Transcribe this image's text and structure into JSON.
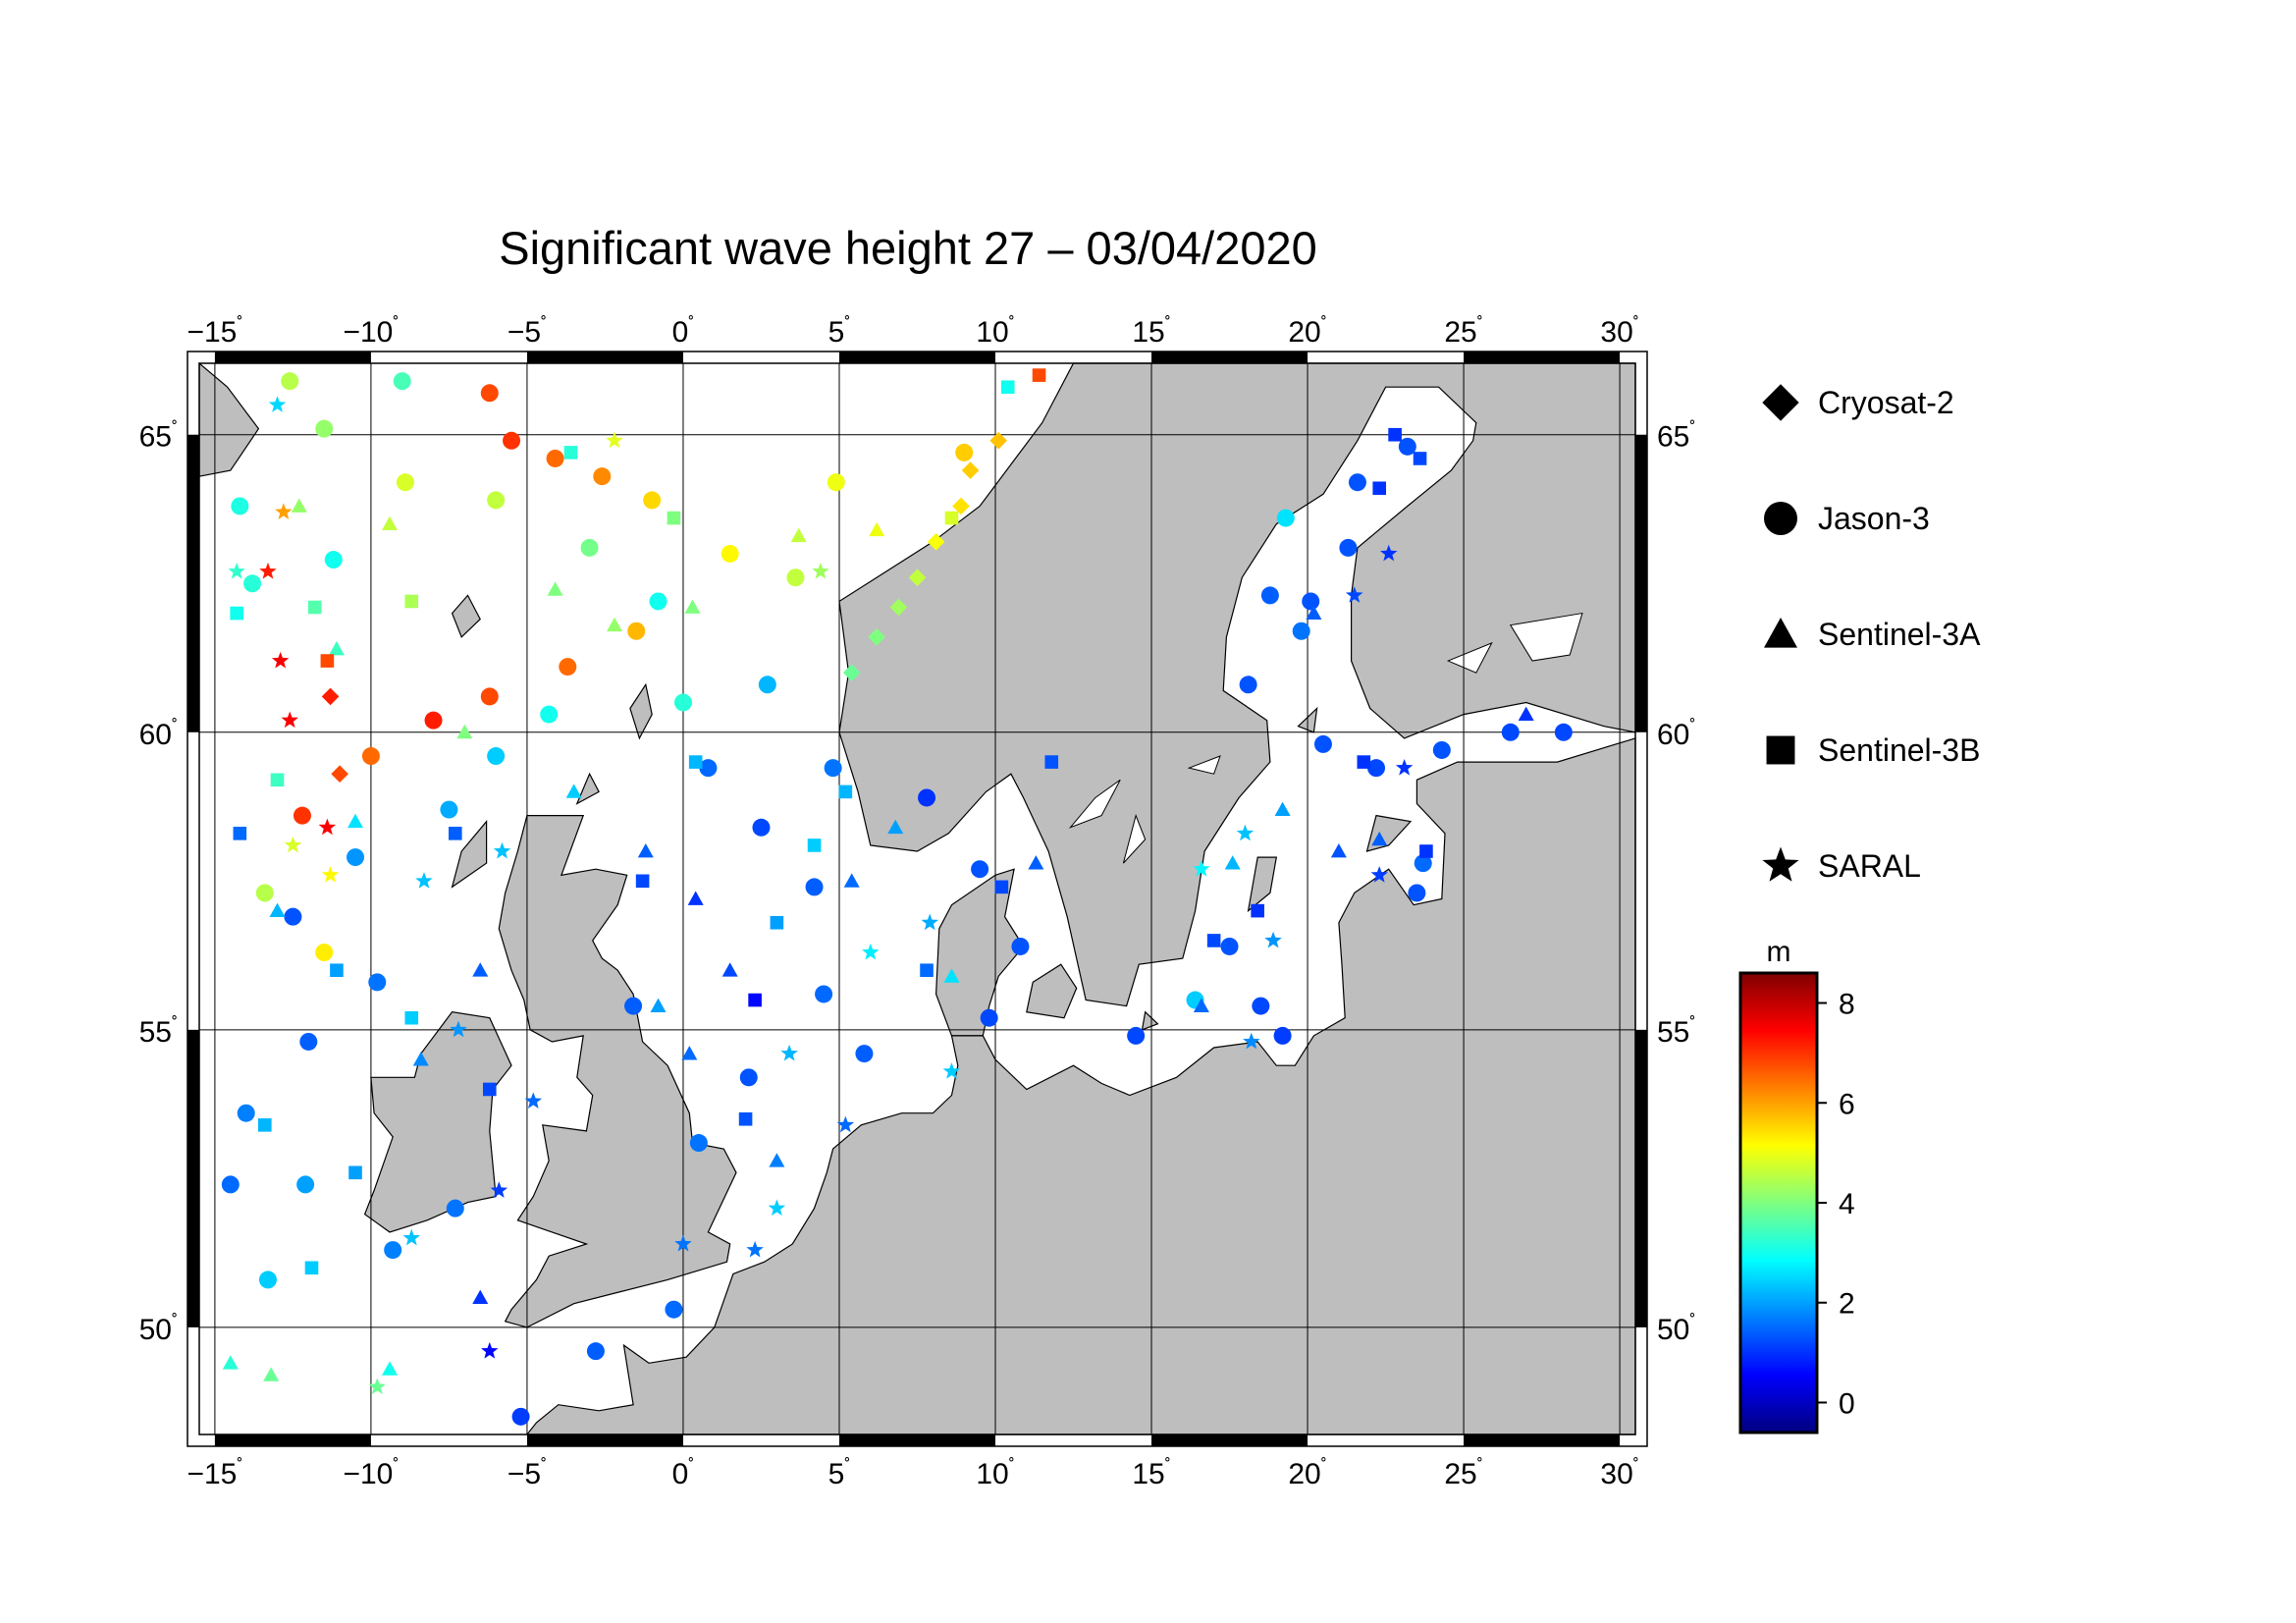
{
  "title": "Significant wave height 27 – 03/04/2020",
  "map": {
    "lon_range": [
      -15.5,
      30.5
    ],
    "lat_range": [
      48.2,
      66.2
    ],
    "lon_ticks": [
      -15,
      -10,
      -5,
      0,
      5,
      10,
      15,
      20,
      25,
      30
    ],
    "lon_tick_labels": [
      "−15",
      "−10",
      "−5",
      "0",
      "5",
      "10",
      "15",
      "20",
      "25",
      "30"
    ],
    "lat_ticks": [
      50,
      55,
      60,
      65
    ],
    "lat_tick_labels": [
      "50",
      "55",
      "60",
      "65"
    ],
    "degree_symbol": "˚",
    "land_color": "#bebebe",
    "sea_color": "#ffffff"
  },
  "legend": {
    "items": [
      {
        "symbol": "diamond",
        "label": "Cryosat-2"
      },
      {
        "symbol": "circle",
        "label": "Jason-3"
      },
      {
        "symbol": "triangle",
        "label": "Sentinel-3A"
      },
      {
        "symbol": "square",
        "label": "Sentinel-3B"
      },
      {
        "symbol": "star",
        "label": "SARAL"
      }
    ]
  },
  "colorbar": {
    "unit": "m",
    "min": -0.6,
    "max": 8.6,
    "ticks": [
      0,
      2,
      4,
      6,
      8
    ],
    "tick_labels": [
      "0",
      "2",
      "4",
      "6",
      "8"
    ],
    "colors": [
      "#00007f",
      "#0000ff",
      "#007fff",
      "#00ffff",
      "#7fff7f",
      "#ffff00",
      "#ff7f00",
      "#ff0000",
      "#7f0000"
    ]
  },
  "chart_data": {
    "type": "scatter",
    "title": "Significant wave height 27 – 03/04/2020",
    "x_axis": "longitude",
    "y_axis": "latitude",
    "value": "significant wave height (m)",
    "series": [
      {
        "name": "Jason-3",
        "symbol": "circle",
        "points": [
          [
            -12.6,
            65.9,
            4.5
          ],
          [
            -9,
            65.9,
            3.5
          ],
          [
            -6.2,
            65.7,
            6.8
          ],
          [
            -5.5,
            64.9,
            7.0
          ],
          [
            -4.1,
            64.6,
            6.5
          ],
          [
            -2.6,
            64.3,
            6.2
          ],
          [
            -1,
            63.9,
            5.5
          ],
          [
            1.5,
            63.0,
            5.2
          ],
          [
            3.6,
            62.6,
            4.6
          ],
          [
            -1.5,
            61.7,
            5.8
          ],
          [
            -3.7,
            61.1,
            6.5
          ],
          [
            -6.2,
            60.6,
            6.8
          ],
          [
            -8,
            60.2,
            7.2
          ],
          [
            -10,
            59.6,
            6.5
          ],
          [
            -12.2,
            58.6,
            7.0
          ],
          [
            -13.4,
            57.3,
            4.5
          ],
          [
            -11.5,
            56.3,
            5.3
          ],
          [
            -13.8,
            62.5,
            3.2
          ],
          [
            -14.2,
            63.8,
            3.1
          ],
          [
            -11.2,
            62.9,
            3.0
          ],
          [
            -9.8,
            55.8,
            1.6
          ],
          [
            -12,
            54.8,
            1.4
          ],
          [
            -14,
            53.6,
            1.7
          ],
          [
            -12.5,
            56.9,
            1.3
          ],
          [
            -10.5,
            57.9,
            1.9
          ],
          [
            -7.5,
            58.7,
            2.1
          ],
          [
            -6,
            59.6,
            2.4
          ],
          [
            -4.3,
            60.3,
            3.0
          ],
          [
            0,
            60.5,
            3.2
          ],
          [
            0.8,
            59.4,
            1.5
          ],
          [
            2.5,
            58.4,
            1.2
          ],
          [
            4.2,
            57.4,
            1.4
          ],
          [
            4.5,
            55.6,
            1.5
          ],
          [
            2.1,
            54.2,
            1.3
          ],
          [
            0.5,
            53.1,
            1.6
          ],
          [
            5.8,
            54.6,
            1.4
          ],
          [
            4.8,
            59.4,
            1.6
          ],
          [
            2.7,
            60.8,
            2.2
          ],
          [
            -0.8,
            62.2,
            3.0
          ],
          [
            -3,
            63.1,
            3.9
          ],
          [
            -6,
            63.9,
            4.6
          ],
          [
            -8.9,
            64.2,
            4.8
          ],
          [
            -11.5,
            65.1,
            4.2
          ],
          [
            4.9,
            64.2,
            5.0
          ],
          [
            9,
            64.7,
            5.6
          ],
          [
            7.8,
            58.9,
            1.0
          ],
          [
            9.5,
            57.7,
            1.3
          ],
          [
            10.8,
            56.4,
            1.3
          ],
          [
            9.8,
            55.2,
            1.2
          ],
          [
            14.5,
            54.9,
            1.2
          ],
          [
            16.4,
            55.5,
            2.4
          ],
          [
            17.5,
            56.4,
            1.3
          ],
          [
            18.5,
            55.4,
            1.2
          ],
          [
            19.2,
            54.9,
            1.1
          ],
          [
            20.5,
            59.8,
            1.3
          ],
          [
            22.2,
            59.4,
            1.2
          ],
          [
            24.3,
            59.7,
            1.3
          ],
          [
            26.5,
            60.0,
            1.2
          ],
          [
            28.2,
            60.0,
            1.2
          ],
          [
            23.7,
            57.8,
            1.5
          ],
          [
            23.5,
            57.3,
            1.3
          ],
          [
            18.1,
            60.8,
            1.3
          ],
          [
            18.8,
            62.3,
            1.4
          ],
          [
            20.1,
            62.2,
            1.3
          ],
          [
            21.3,
            63.1,
            1.3
          ],
          [
            21.6,
            64.2,
            1.3
          ],
          [
            23.2,
            64.8,
            1.3
          ],
          [
            19.8,
            61.7,
            1.6
          ],
          [
            19.3,
            63.6,
            2.6
          ],
          [
            -1.6,
            55.4,
            1.4
          ],
          [
            -0.3,
            50.3,
            1.5
          ],
          [
            -2.8,
            49.6,
            1.4
          ],
          [
            -5.2,
            48.5,
            1.1
          ],
          [
            -7.3,
            52.0,
            1.6
          ],
          [
            -9.3,
            51.3,
            1.7
          ],
          [
            -12.1,
            52.4,
            2.0
          ],
          [
            -13.3,
            50.8,
            2.4
          ],
          [
            -14.5,
            52.4,
            1.5
          ]
        ]
      },
      {
        "name": "Sentinel-3A",
        "symbol": "triangle",
        "points": [
          [
            -14.5,
            49.4,
            3.2
          ],
          [
            -13.2,
            49.2,
            3.8
          ],
          [
            -9.4,
            49.3,
            3.0
          ],
          [
            -6.5,
            50.5,
            1.0
          ],
          [
            -8.4,
            54.5,
            1.8
          ],
          [
            -6.5,
            56.0,
            1.4
          ],
          [
            -3.5,
            59.0,
            2.4
          ],
          [
            -1.2,
            58.0,
            1.4
          ],
          [
            0.4,
            57.2,
            1.0
          ],
          [
            1.5,
            56.0,
            1.2
          ],
          [
            -0.8,
            55.4,
            2.0
          ],
          [
            0.2,
            54.6,
            1.5
          ],
          [
            3.0,
            52.8,
            1.7
          ],
          [
            5.4,
            57.5,
            1.5
          ],
          [
            6.8,
            58.4,
            2.0
          ],
          [
            8.6,
            55.9,
            2.6
          ],
          [
            11.3,
            57.8,
            1.4
          ],
          [
            16.6,
            55.4,
            1.5
          ],
          [
            17.6,
            57.8,
            2.2
          ],
          [
            19.2,
            58.7,
            2.0
          ],
          [
            22.3,
            58.2,
            1.4
          ],
          [
            27.0,
            60.3,
            1.0
          ],
          [
            -12.3,
            63.8,
            4.2
          ],
          [
            -9.4,
            63.5,
            4.6
          ],
          [
            -4.1,
            62.4,
            4.0
          ],
          [
            -2.2,
            61.8,
            4.2
          ],
          [
            0.3,
            62.1,
            4.0
          ],
          [
            3.7,
            63.3,
            4.6
          ],
          [
            6.2,
            63.4,
            5.0
          ],
          [
            -10.5,
            58.5,
            2.6
          ],
          [
            -13.0,
            57.0,
            2.2
          ],
          [
            -11.1,
            61.4,
            3.4
          ],
          [
            -7.0,
            60.0,
            4.0
          ],
          [
            21.0,
            58.0,
            1.3
          ],
          [
            20.2,
            62.0,
            1.4
          ]
        ]
      },
      {
        "name": "Sentinel-3B",
        "symbol": "square",
        "points": [
          [
            -11.9,
            51.0,
            2.4
          ],
          [
            -10.5,
            52.6,
            2.0
          ],
          [
            -13.4,
            53.4,
            2.2
          ],
          [
            -11.1,
            56.0,
            2.0
          ],
          [
            -13.0,
            59.2,
            3.4
          ],
          [
            -11.4,
            61.2,
            6.8
          ],
          [
            -11.8,
            62.1,
            3.6
          ],
          [
            -7.3,
            58.3,
            1.4
          ],
          [
            -1.3,
            57.5,
            1.2
          ],
          [
            2.3,
            55.5,
            0.6
          ],
          [
            3.0,
            56.8,
            2.0
          ],
          [
            4.2,
            58.1,
            2.4
          ],
          [
            5.2,
            59.0,
            2.2
          ],
          [
            7.8,
            56.0,
            1.5
          ],
          [
            2.0,
            53.5,
            1.3
          ],
          [
            10.2,
            57.4,
            1.2
          ],
          [
            11.8,
            59.5,
            1.3
          ],
          [
            17.0,
            56.5,
            1.2
          ],
          [
            18.4,
            57.0,
            1.0
          ],
          [
            21.8,
            59.5,
            1.0
          ],
          [
            23.8,
            58.0,
            1.0
          ],
          [
            22.3,
            64.1,
            1.0
          ],
          [
            22.8,
            65.0,
            1.0
          ],
          [
            23.6,
            64.6,
            1.2
          ],
          [
            -14.3,
            62.0,
            3.0
          ],
          [
            -8.7,
            62.2,
            4.4
          ],
          [
            -3.6,
            64.7,
            3.2
          ],
          [
            -0.3,
            63.6,
            4.0
          ],
          [
            0.4,
            59.5,
            2.2
          ],
          [
            8.6,
            63.6,
            4.8
          ],
          [
            11.4,
            66.0,
            6.8
          ],
          [
            10.4,
            65.8,
            3.0
          ],
          [
            -8.7,
            55.2,
            2.4
          ],
          [
            -6.2,
            54.0,
            1.2
          ],
          [
            -14.2,
            58.3,
            1.5
          ]
        ]
      },
      {
        "name": "SARAL",
        "symbol": "star",
        "points": [
          [
            -13.0,
            65.5,
            2.5
          ],
          [
            -14.3,
            62.7,
            3.3
          ],
          [
            -12.8,
            63.7,
            6.0
          ],
          [
            -13.3,
            62.7,
            7.2
          ],
          [
            -12.9,
            61.2,
            7.5
          ],
          [
            -12.6,
            60.2,
            7.5
          ],
          [
            -11.4,
            58.4,
            7.5
          ],
          [
            -11.3,
            57.6,
            5.2
          ],
          [
            -12.5,
            58.1,
            4.8
          ],
          [
            -8.7,
            51.5,
            2.3
          ],
          [
            -9.8,
            49.0,
            3.8
          ],
          [
            -6.2,
            49.6,
            0.6
          ],
          [
            -5.9,
            52.3,
            1.1
          ],
          [
            -4.8,
            53.8,
            1.5
          ],
          [
            -7.2,
            55.0,
            1.9
          ],
          [
            -8.3,
            57.5,
            2.3
          ],
          [
            -5.8,
            58.0,
            2.3
          ],
          [
            3.4,
            54.6,
            2.2
          ],
          [
            6.0,
            56.3,
            2.7
          ],
          [
            7.9,
            56.8,
            2.1
          ],
          [
            8.6,
            54.3,
            2.4
          ],
          [
            5.2,
            53.4,
            1.5
          ],
          [
            3.0,
            52.0,
            2.4
          ],
          [
            2.3,
            51.3,
            1.6
          ],
          [
            0.0,
            51.4,
            1.6
          ],
          [
            16.6,
            57.7,
            2.8
          ],
          [
            18.0,
            58.3,
            2.3
          ],
          [
            18.9,
            56.5,
            1.9
          ],
          [
            18.2,
            54.8,
            1.8
          ],
          [
            21.5,
            62.3,
            1.2
          ],
          [
            22.6,
            63.0,
            1.0
          ],
          [
            23.1,
            59.4,
            1.0
          ],
          [
            22.3,
            57.6,
            1.1
          ],
          [
            -2.2,
            64.9,
            4.9
          ],
          [
            4.4,
            62.7,
            4.3
          ]
        ]
      },
      {
        "name": "Cryosat-2",
        "symbol": "diamond",
        "points": [
          [
            8.9,
            63.8,
            5.4
          ],
          [
            10.1,
            64.9,
            5.7
          ],
          [
            9.2,
            64.4,
            5.6
          ],
          [
            8.1,
            63.2,
            5.1
          ],
          [
            7.5,
            62.6,
            4.6
          ],
          [
            6.9,
            62.1,
            4.3
          ],
          [
            6.2,
            61.6,
            4.0
          ],
          [
            5.4,
            61.0,
            3.8
          ],
          [
            -11.0,
            59.3,
            6.8
          ],
          [
            -11.3,
            60.6,
            7.2
          ]
        ]
      }
    ]
  }
}
